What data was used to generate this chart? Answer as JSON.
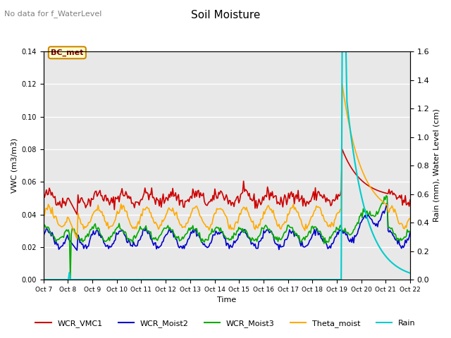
{
  "title": "Soil Moisture",
  "top_left_text": "No data for f_WaterLevel",
  "xlabel": "Time",
  "ylabel_left": "VWC (m3/m3)",
  "ylabel_right": "Rain (mm), Water Level (cm)",
  "ylim_left": [
    0.0,
    0.14
  ],
  "ylim_right": [
    0.0,
    1.6
  ],
  "yticks_left": [
    0.0,
    0.02,
    0.04,
    0.06,
    0.08,
    0.1,
    0.12,
    0.14
  ],
  "yticks_right": [
    0.0,
    0.2,
    0.4,
    0.6,
    0.8,
    1.0,
    1.2,
    1.4,
    1.6
  ],
  "xtick_labels": [
    "Oct 7",
    "Oct 8",
    "Oct 9",
    "Oct 10",
    "Oct 11",
    "Oct 12",
    "Oct 13",
    "Oct 14",
    "Oct 15",
    "Oct 16",
    "Oct 17",
    "Oct 18",
    "Oct 19",
    "Oct 20",
    "Oct 21",
    "Oct 22"
  ],
  "background_color": "#ffffff",
  "plot_bg_color": "#e8e8e8",
  "grid_color": "#ffffff",
  "legend_items": [
    {
      "label": "WCR_VMC1",
      "color": "#cc0000"
    },
    {
      "label": "WCR_Moist2",
      "color": "#0000cc"
    },
    {
      "label": "WCR_Moist3",
      "color": "#00aa00"
    },
    {
      "label": "Theta_moist",
      "color": "#ffaa00"
    },
    {
      "label": "Rain",
      "color": "#00cccc"
    }
  ],
  "BC_met_box": {
    "text": "BC_met",
    "facecolor": "#ffffcc",
    "edgecolor": "#cc8800",
    "textcolor": "#880000"
  }
}
